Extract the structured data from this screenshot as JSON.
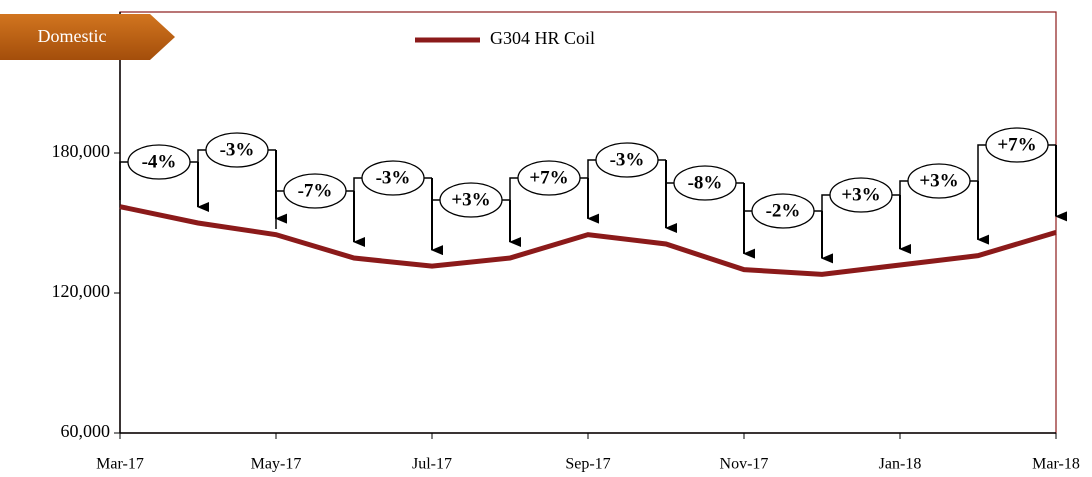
{
  "chart_data": {
    "type": "line",
    "badge": "Domestic",
    "categories": [
      "Mar-17",
      null,
      "May-17",
      null,
      "Jul-17",
      null,
      "Sep-17",
      null,
      "Nov-17",
      null,
      "Jan-18",
      null,
      "Mar-18"
    ],
    "series": [
      {
        "name": "G304 HR Coil",
        "color": "#8b1a1a",
        "values": [
          157000,
          150000,
          145000,
          135000,
          131500,
          135000,
          145000,
          141000,
          130000,
          128000,
          132000,
          136000,
          146000
        ]
      }
    ],
    "annotations": [
      "-4%",
      "-3%",
      "-7%",
      "-3%",
      "+3%",
      "+7%",
      "-3%",
      "-8%",
      "-2%",
      "+3%",
      "+3%",
      "+7%"
    ],
    "ylim": [
      60000,
      240000
    ],
    "yticks": [
      {
        "value": 60000,
        "label": "60,000"
      },
      {
        "value": 120000,
        "label": "120,000"
      },
      {
        "value": 180000,
        "label": "180,000"
      }
    ],
    "legend": "top"
  }
}
